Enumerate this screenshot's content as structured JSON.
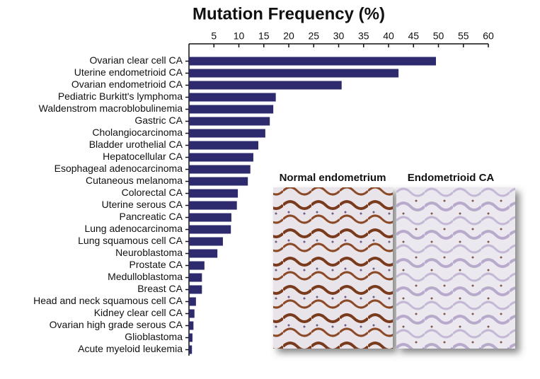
{
  "chart_data": {
    "type": "barh",
    "title": "Mutation Frequency (%)",
    "categories": [
      "Ovarian clear cell CA",
      "Uterine endometrioid CA",
      "Ovarian endometrioid CA",
      "Pediatric Burkitt's lymphoma",
      "Waldenstrom macroblobulinemia",
      "Gastric CA",
      "Cholangiocarcinoma",
      "Bladder urothelial CA",
      "Hepatocellular CA",
      "Esophageal adenocarcinoma",
      "Cutaneous melanoma",
      "Colorectal CA",
      "Uterine serous CA",
      "Pancreatic CA",
      "Lung adenocarcinoma",
      "Lung squamous cell CA",
      "Neuroblastoma",
      "Prostate CA",
      "Medulloblastoma",
      "Breast CA",
      "Head and neck squamous cell CA",
      "Kidney clear cell CA",
      "Ovarian high grade serous CA",
      "Glioblastoma",
      "Acute myeloid leukemia"
    ],
    "values": [
      49.5,
      42,
      30.6,
      17.4,
      16.9,
      16.2,
      15.3,
      13.9,
      12.9,
      12.3,
      11.8,
      9.8,
      9.6,
      8.5,
      8.4,
      6.8,
      5.7,
      3.1,
      2.6,
      2.6,
      1.4,
      1.1,
      0.9,
      0.7,
      0.6
    ],
    "color": "#2e2a6e",
    "xlim": [
      0,
      60
    ],
    "xticks": [
      5,
      10,
      15,
      20,
      25,
      30,
      35,
      40,
      45,
      50,
      55,
      60
    ],
    "annotations": [
      "Normal endometrium",
      "Endometrioid CA"
    ]
  }
}
